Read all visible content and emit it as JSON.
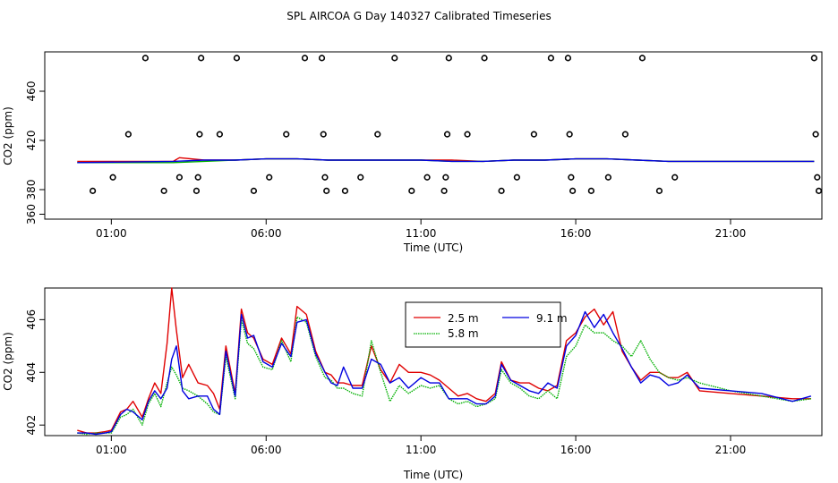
{
  "title": "SPL AIRCOA G  Day 140327  Calibrated Timeseries",
  "chart_data": [
    {
      "type": "scatter+line",
      "xlabel": "Time (UTC)",
      "ylabel": "CO2 (ppm)",
      "xlim": [
        -1.15,
        23.95
      ],
      "ylim": [
        356,
        492
      ],
      "x_ticks": [
        1,
        6,
        11,
        16,
        21
      ],
      "x_tick_labels": [
        "01:00",
        "06:00",
        "11:00",
        "16:00",
        "21:00"
      ],
      "y_ticks": [
        360,
        380,
        420,
        460
      ],
      "y_tick_labels": [
        "360",
        "380",
        "420",
        "460"
      ],
      "grid": false,
      "colors": {
        "marker": "#000000",
        "line_red": "#e00000",
        "line_green": "#00b000",
        "line_blue": "#0000e0"
      },
      "marker_points": [
        {
          "x": 0.4,
          "y": 379
        },
        {
          "x": 1.05,
          "y": 390
        },
        {
          "x": 1.55,
          "y": 425
        },
        {
          "x": 2.1,
          "y": 487
        },
        {
          "x": 2.7,
          "y": 379
        },
        {
          "x": 3.2,
          "y": 390
        },
        {
          "x": 3.75,
          "y": 379
        },
        {
          "x": 3.8,
          "y": 390
        },
        {
          "x": 3.85,
          "y": 425
        },
        {
          "x": 3.9,
          "y": 487
        },
        {
          "x": 4.5,
          "y": 425
        },
        {
          "x": 5.05,
          "y": 487
        },
        {
          "x": 5.6,
          "y": 379
        },
        {
          "x": 6.1,
          "y": 390
        },
        {
          "x": 6.65,
          "y": 425
        },
        {
          "x": 7.25,
          "y": 487
        },
        {
          "x": 7.8,
          "y": 487
        },
        {
          "x": 7.85,
          "y": 425
        },
        {
          "x": 7.9,
          "y": 390
        },
        {
          "x": 7.95,
          "y": 379
        },
        {
          "x": 8.55,
          "y": 379
        },
        {
          "x": 9.05,
          "y": 390
        },
        {
          "x": 9.6,
          "y": 425
        },
        {
          "x": 10.15,
          "y": 487
        },
        {
          "x": 10.7,
          "y": 379
        },
        {
          "x": 11.2,
          "y": 390
        },
        {
          "x": 11.75,
          "y": 379
        },
        {
          "x": 11.8,
          "y": 390
        },
        {
          "x": 11.85,
          "y": 425
        },
        {
          "x": 11.9,
          "y": 487
        },
        {
          "x": 12.5,
          "y": 425
        },
        {
          "x": 13.05,
          "y": 487
        },
        {
          "x": 13.6,
          "y": 379
        },
        {
          "x": 14.1,
          "y": 390
        },
        {
          "x": 14.65,
          "y": 425
        },
        {
          "x": 15.2,
          "y": 487
        },
        {
          "x": 15.75,
          "y": 487
        },
        {
          "x": 15.8,
          "y": 425
        },
        {
          "x": 15.85,
          "y": 390
        },
        {
          "x": 15.9,
          "y": 379
        },
        {
          "x": 16.5,
          "y": 379
        },
        {
          "x": 17.05,
          "y": 390
        },
        {
          "x": 17.6,
          "y": 425
        },
        {
          "x": 18.15,
          "y": 487
        },
        {
          "x": 18.7,
          "y": 379
        },
        {
          "x": 19.2,
          "y": 390
        },
        {
          "x": 23.7,
          "y": 487
        },
        {
          "x": 23.75,
          "y": 425
        },
        {
          "x": 23.8,
          "y": 390
        },
        {
          "x": 23.85,
          "y": 379
        }
      ],
      "series": [
        {
          "name": "2.5 m",
          "color": "#e00000",
          "x": [
            -0.1,
            3,
            3.2,
            4,
            5,
            6,
            7,
            8,
            9,
            10,
            11,
            12,
            13,
            14,
            15,
            16,
            17,
            18,
            19,
            20,
            23.7
          ],
          "y": [
            403,
            403,
            406,
            404,
            404,
            405,
            405,
            404,
            404,
            404,
            404,
            404,
            403,
            404,
            404,
            405,
            405,
            404,
            403,
            403,
            403
          ]
        },
        {
          "name": "5.8 m",
          "color": "#00b000",
          "x": [
            -0.1,
            3,
            4,
            5,
            6,
            7,
            8,
            9,
            10,
            11,
            12,
            13,
            14,
            15,
            16,
            17,
            18,
            19,
            20,
            23.7
          ],
          "y": [
            402,
            402,
            403,
            404,
            405,
            405,
            404,
            404,
            404,
            404,
            403,
            403,
            404,
            404,
            405,
            405,
            404,
            403,
            403,
            403
          ]
        },
        {
          "name": "9.1 m",
          "color": "#0000e0",
          "x": [
            -0.1,
            3,
            4,
            5,
            6,
            7,
            8,
            9,
            10,
            11,
            12,
            13,
            14,
            15,
            16,
            17,
            18,
            19,
            20,
            23.7
          ],
          "y": [
            402,
            403,
            404,
            404,
            405,
            405,
            404,
            404,
            404,
            404,
            403,
            403,
            404,
            404,
            405,
            405,
            404,
            403,
            403,
            403
          ]
        }
      ]
    },
    {
      "type": "line",
      "xlabel": "Time (UTC)",
      "ylabel": "CO2 (ppm)",
      "xlim": [
        -1.15,
        23.95
      ],
      "ylim": [
        401.6,
        407.2
      ],
      "x_ticks": [
        1,
        6,
        11,
        16,
        21
      ],
      "x_tick_labels": [
        "01:00",
        "06:00",
        "11:00",
        "16:00",
        "21:00"
      ],
      "y_ticks": [
        402,
        404,
        406
      ],
      "y_tick_labels": [
        "402",
        "404",
        "406"
      ],
      "legend": {
        "position": "top-center",
        "entries": [
          "2.5 m",
          "5.8 m",
          "9.1 m"
        ]
      },
      "series": [
        {
          "name": "2.5 m",
          "color": "#e00000",
          "x": [
            -0.1,
            0.2,
            0.5,
            0.8,
            1.0,
            1.3,
            1.5,
            1.7,
            2.0,
            2.2,
            2.4,
            2.6,
            2.8,
            2.95,
            3.1,
            3.3,
            3.5,
            3.8,
            4.1,
            4.3,
            4.5,
            4.7,
            5.0,
            5.2,
            5.4,
            5.6,
            5.9,
            6.2,
            6.5,
            6.8,
            7.0,
            7.3,
            7.6,
            7.9,
            8.1,
            8.3,
            8.5,
            8.8,
            9.1,
            9.4,
            9.7,
            10.0,
            10.3,
            10.6,
            11.0,
            11.3,
            11.6,
            11.9,
            12.2,
            12.5,
            12.8,
            13.1,
            13.4,
            13.6,
            13.9,
            14.2,
            14.5,
            14.8,
            15.1,
            15.4,
            15.7,
            16.0,
            16.3,
            16.6,
            16.9,
            17.2,
            17.5,
            17.8,
            18.1,
            18.4,
            18.7,
            19.0,
            19.3,
            19.6,
            20.0,
            21.0,
            22.0,
            23.0,
            23.6
          ],
          "y": [
            401.8,
            401.7,
            401.7,
            401.75,
            401.8,
            402.5,
            402.6,
            402.9,
            402.3,
            403.0,
            403.6,
            403.2,
            405.1,
            407.2,
            405.6,
            403.8,
            404.3,
            403.6,
            403.5,
            403.2,
            402.6,
            405.0,
            403.2,
            406.4,
            405.5,
            405.3,
            404.5,
            404.3,
            405.3,
            404.7,
            406.5,
            406.2,
            404.8,
            404.0,
            403.9,
            403.6,
            403.6,
            403.5,
            403.5,
            405.0,
            404.1,
            403.6,
            404.3,
            404.0,
            404.0,
            403.9,
            403.7,
            403.4,
            403.1,
            403.2,
            403.0,
            402.9,
            403.2,
            404.4,
            403.7,
            403.6,
            403.6,
            403.4,
            403.3,
            403.5,
            405.2,
            405.5,
            406.1,
            406.4,
            405.8,
            406.3,
            404.8,
            404.2,
            403.7,
            404.0,
            404.0,
            403.8,
            403.8,
            404.0,
            403.3,
            403.2,
            403.1,
            403.0,
            403.0
          ]
        },
        {
          "name": "5.8 m",
          "color": "#00b000",
          "x": [
            -0.1,
            0.2,
            0.5,
            0.8,
            1.0,
            1.3,
            1.5,
            1.7,
            2.0,
            2.2,
            2.4,
            2.6,
            2.8,
            2.95,
            3.1,
            3.3,
            3.5,
            3.8,
            4.1,
            4.3,
            4.5,
            4.7,
            5.0,
            5.2,
            5.4,
            5.6,
            5.9,
            6.2,
            6.5,
            6.8,
            7.0,
            7.3,
            7.6,
            7.9,
            8.1,
            8.3,
            8.5,
            8.8,
            9.1,
            9.4,
            9.7,
            10.0,
            10.3,
            10.6,
            11.0,
            11.3,
            11.6,
            11.9,
            12.2,
            12.5,
            12.8,
            13.1,
            13.4,
            13.6,
            13.9,
            14.2,
            14.5,
            14.8,
            15.1,
            15.4,
            15.7,
            16.0,
            16.3,
            16.6,
            16.9,
            17.2,
            17.5,
            17.8,
            18.1,
            18.4,
            18.7,
            19.0,
            19.3,
            19.6,
            20.0,
            21.0,
            22.0,
            23.0,
            23.6
          ],
          "y": [
            401.7,
            401.65,
            401.7,
            401.7,
            401.7,
            402.3,
            402.4,
            402.6,
            402.0,
            402.8,
            403.2,
            402.7,
            403.6,
            404.2,
            403.9,
            403.4,
            403.3,
            403.1,
            402.8,
            402.5,
            402.4,
            404.6,
            403.0,
            406.0,
            405.1,
            404.9,
            404.2,
            404.1,
            405.2,
            404.4,
            406.1,
            405.9,
            404.6,
            403.8,
            403.7,
            403.4,
            403.4,
            403.2,
            403.1,
            405.2,
            404.0,
            402.9,
            403.5,
            403.2,
            403.5,
            403.4,
            403.5,
            403.0,
            402.8,
            402.9,
            402.7,
            402.8,
            403.0,
            404.1,
            403.6,
            403.4,
            403.1,
            403.0,
            403.3,
            403.0,
            404.6,
            405.0,
            405.8,
            405.5,
            405.5,
            405.2,
            405.0,
            404.6,
            405.2,
            404.5,
            404.0,
            403.8,
            403.7,
            403.8,
            403.6,
            403.3,
            403.1,
            402.9,
            403.0
          ]
        },
        {
          "name": "9.1 m",
          "color": "#0000e0",
          "x": [
            -0.1,
            0.2,
            0.5,
            0.8,
            1.0,
            1.3,
            1.5,
            1.7,
            2.0,
            2.2,
            2.4,
            2.6,
            2.8,
            2.95,
            3.1,
            3.3,
            3.5,
            3.8,
            4.1,
            4.3,
            4.5,
            4.7,
            5.0,
            5.2,
            5.4,
            5.6,
            5.9,
            6.2,
            6.5,
            6.8,
            7.0,
            7.3,
            7.6,
            7.9,
            8.1,
            8.3,
            8.5,
            8.8,
            9.1,
            9.4,
            9.7,
            10.0,
            10.3,
            10.6,
            11.0,
            11.3,
            11.6,
            11.9,
            12.2,
            12.5,
            12.8,
            13.1,
            13.4,
            13.6,
            13.9,
            14.2,
            14.5,
            14.8,
            15.1,
            15.4,
            15.7,
            16.0,
            16.3,
            16.6,
            16.9,
            17.2,
            17.5,
            17.8,
            18.1,
            18.4,
            18.7,
            19.0,
            19.3,
            19.6,
            20.0,
            21.0,
            22.0,
            23.0,
            23.6
          ],
          "y": [
            401.7,
            401.7,
            401.65,
            401.7,
            401.75,
            402.4,
            402.6,
            402.5,
            402.2,
            402.9,
            403.3,
            403.0,
            403.4,
            404.5,
            405.0,
            403.3,
            403.0,
            403.1,
            403.1,
            402.6,
            402.4,
            404.8,
            403.1,
            406.2,
            405.3,
            405.4,
            404.4,
            404.2,
            405.1,
            404.6,
            405.9,
            406.0,
            404.7,
            404.0,
            403.6,
            403.5,
            404.2,
            403.4,
            403.4,
            404.5,
            404.3,
            403.6,
            403.8,
            403.4,
            403.8,
            403.6,
            403.6,
            403.0,
            403.0,
            403.0,
            402.8,
            402.8,
            403.1,
            404.3,
            403.7,
            403.5,
            403.3,
            403.2,
            403.6,
            403.4,
            405.0,
            405.4,
            406.3,
            405.7,
            406.2,
            405.5,
            404.9,
            404.2,
            403.6,
            403.9,
            403.8,
            403.5,
            403.6,
            403.9,
            403.4,
            403.3,
            403.2,
            402.9,
            403.1
          ]
        }
      ]
    }
  ]
}
